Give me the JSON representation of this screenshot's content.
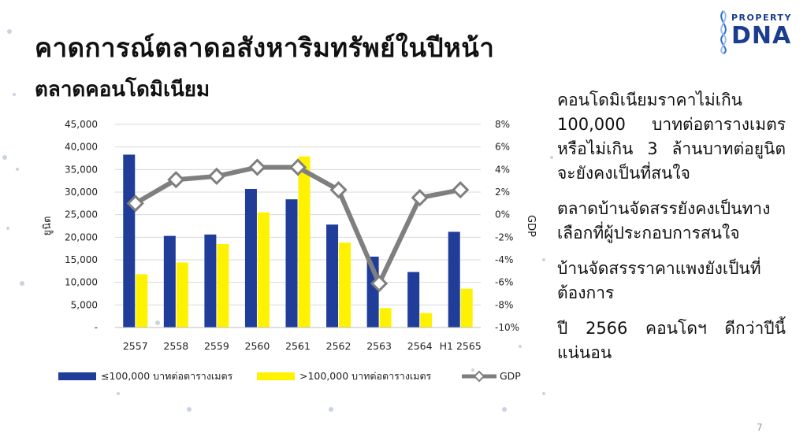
{
  "title": "คาดการณ์ตลาดอสังหาริมทรัพย์ในปีหน้า",
  "subtitle": "ตลาดคอนโดมิเนียม",
  "logo": {
    "top": "PROPERTY",
    "bottom": "DNA"
  },
  "bullets": [
    "คอนโดมิเนียมราคาไม่เกิน 100,000 บาทต่อตารางเมตรหรือไม่เกิน 3 ล้านบาทต่อยูนิตจะยังคงเป็นที่สนใจ",
    "ตลาดบ้านจัดสรรยังคงเป็นทางเลือกที่ผู้ประกอบการสนใจ",
    "บ้านจัดสรรราคาแพงยังเป็นที่ต้องการ",
    "ปี 2566 คอนโดฯ ดีกว่าปีนี้แน่นอน"
  ],
  "page_number": "7",
  "colors": {
    "bar_low": "#1f3d99",
    "bar_high": "#fff200",
    "gdp_line": "#7f7f7f",
    "gdp_marker_fill": "#ffffff"
  },
  "chart_data": {
    "type": "bar",
    "categories": [
      "2557",
      "2558",
      "2559",
      "2560",
      "2561",
      "2562",
      "2563",
      "2564",
      "H1 2565"
    ],
    "series": [
      {
        "name": "≤100,000 บาทต่อตารางเมตร",
        "axis": "left",
        "values": [
          38300,
          20300,
          20600,
          30700,
          28400,
          22800,
          15700,
          12300,
          21200
        ]
      },
      {
        "name": ">100,000 บาทต่อตารางเมตร",
        "axis": "left",
        "values": [
          11800,
          14400,
          18500,
          25500,
          37900,
          18800,
          4300,
          3200,
          8600
        ]
      },
      {
        "name": "GDP",
        "type": "line",
        "axis": "right",
        "values": [
          1.0,
          3.1,
          3.4,
          4.2,
          4.2,
          2.2,
          -6.1,
          1.5,
          2.2
        ]
      }
    ],
    "ylabel": "ยูนิต",
    "y2label": "GDP",
    "ylim": [
      0,
      45000
    ],
    "y2lim": [
      -10,
      8
    ],
    "yticks": [
      "-",
      "5,000",
      "10,000",
      "15,000",
      "20,000",
      "25,000",
      "30,000",
      "35,000",
      "40,000",
      "45,000"
    ],
    "y2ticks": [
      "-10%",
      "-8%",
      "-6%",
      "-4%",
      "-2%",
      "0%",
      "2%",
      "4%",
      "6%",
      "8%"
    ],
    "grid": true,
    "legend": "bottom"
  }
}
